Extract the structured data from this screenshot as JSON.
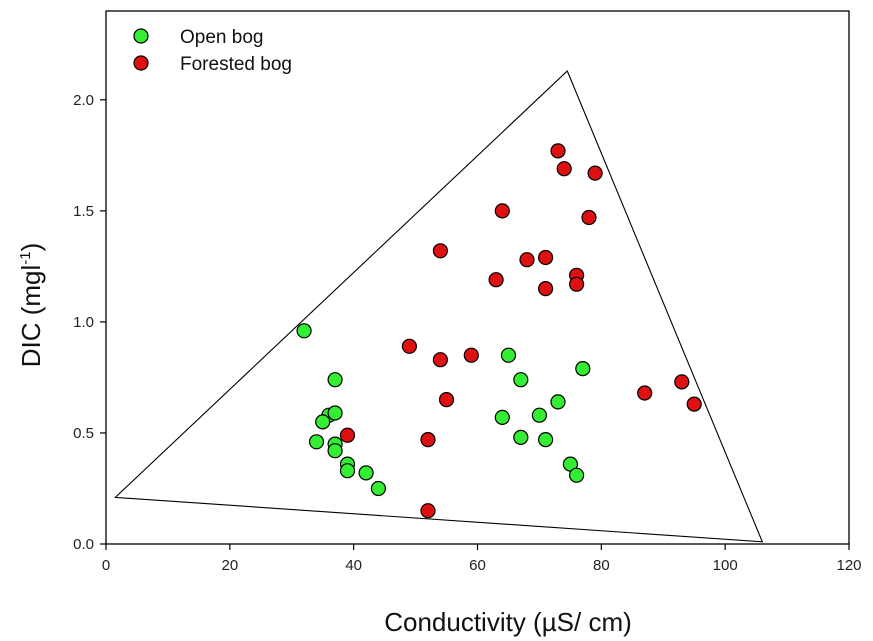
{
  "chart_data": {
    "type": "scatter",
    "xlabel": "Conductivity (µS/ cm)",
    "ylabel_main": "DIC (mgl",
    "ylabel_sup": "-1",
    "ylabel_close": ")",
    "xlim": [
      0,
      120
    ],
    "ylim": [
      0,
      2.4
    ],
    "x_ticks": [
      0,
      20,
      40,
      60,
      80,
      100,
      120
    ],
    "y_ticks": [
      0.0,
      0.5,
      1.0,
      1.5,
      2.0
    ],
    "x_tick_labels": [
      "0",
      "20",
      "40",
      "60",
      "80",
      "100",
      "120"
    ],
    "y_tick_labels": [
      "0.0",
      "0.5",
      "1.0",
      "1.5",
      "2.0"
    ],
    "grid": false,
    "legend_position": "top-left",
    "series": [
      {
        "name": "Open bog",
        "color": "#33ee33",
        "points": [
          [
            32,
            0.96
          ],
          [
            37,
            0.74
          ],
          [
            36,
            0.58
          ],
          [
            37,
            0.59
          ],
          [
            35,
            0.55
          ],
          [
            34,
            0.46
          ],
          [
            37,
            0.45
          ],
          [
            37,
            0.42
          ],
          [
            39,
            0.36
          ],
          [
            39,
            0.33
          ],
          [
            42,
            0.32
          ],
          [
            44,
            0.25
          ],
          [
            65,
            0.85
          ],
          [
            67,
            0.74
          ],
          [
            64,
            0.57
          ],
          [
            67,
            0.48
          ],
          [
            70,
            0.58
          ],
          [
            71,
            0.47
          ],
          [
            73,
            0.64
          ],
          [
            77,
            0.79
          ],
          [
            75,
            0.36
          ],
          [
            76,
            0.31
          ]
        ]
      },
      {
        "name": "Forested bog",
        "color": "#dd1111",
        "points": [
          [
            73,
            1.77
          ],
          [
            74,
            1.69
          ],
          [
            79,
            1.67
          ],
          [
            64,
            1.5
          ],
          [
            78,
            1.47
          ],
          [
            54,
            1.32
          ],
          [
            68,
            1.28
          ],
          [
            71,
            1.29
          ],
          [
            63,
            1.19
          ],
          [
            76,
            1.21
          ],
          [
            76,
            1.17
          ],
          [
            71,
            1.15
          ],
          [
            49,
            0.89
          ],
          [
            54,
            0.83
          ],
          [
            59,
            0.85
          ],
          [
            55,
            0.65
          ],
          [
            39,
            0.49
          ],
          [
            52,
            0.47
          ],
          [
            87,
            0.68
          ],
          [
            93,
            0.73
          ],
          [
            95,
            0.63
          ],
          [
            52,
            0.15
          ]
        ]
      }
    ],
    "triangle": [
      [
        1.5,
        0.21
      ],
      [
        74.5,
        2.13
      ],
      [
        106,
        0.01
      ]
    ]
  }
}
